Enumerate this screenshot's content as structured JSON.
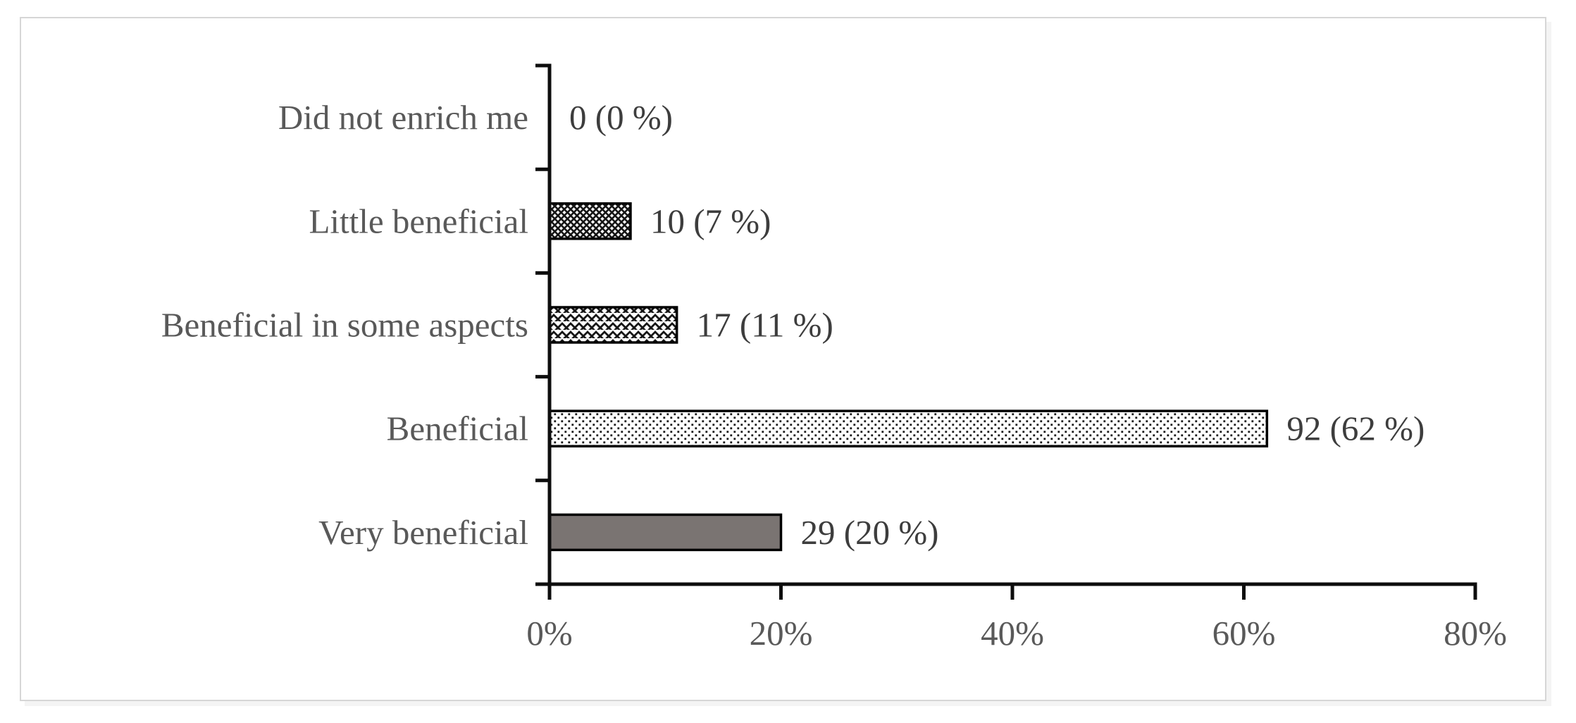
{
  "chart_data": {
    "type": "bar",
    "orientation": "horizontal",
    "title": "",
    "xlabel": "",
    "ylabel": "",
    "categories": [
      "Did not enrich me",
      "Little beneficial",
      "Beneficial in some aspects",
      "Beneficial",
      "Very beneficial"
    ],
    "counts": [
      0,
      10,
      17,
      92,
      29
    ],
    "values_pct": [
      0,
      7,
      11,
      62,
      20
    ],
    "data_labels": [
      "0 (0 %)",
      "10 (7 %)",
      "17 (11 %)",
      "92 (62 %)",
      "29 (20 %)"
    ],
    "bar_styles": [
      "none",
      "diagonal-crosshatch",
      "weave",
      "dots",
      "solid"
    ],
    "x_ticks": [
      {
        "label": "0%",
        "value": 0
      },
      {
        "label": "20%",
        "value": 20
      },
      {
        "label": "40%",
        "value": 40
      },
      {
        "label": "60%",
        "value": 60
      },
      {
        "label": "80%",
        "value": 80
      }
    ],
    "xlim": [
      0,
      80
    ],
    "grid": false,
    "legend": false,
    "colors": {
      "solid_bar": "#7a7472",
      "pattern_ink": "#161616",
      "bar_outline": "#000000",
      "axis": "#0d0d0d",
      "category_label": "#595959",
      "value_label": "#3d3d3d",
      "tick_label": "#595959",
      "frame_border": "#d6d6d6",
      "background": "#ffffff"
    }
  }
}
